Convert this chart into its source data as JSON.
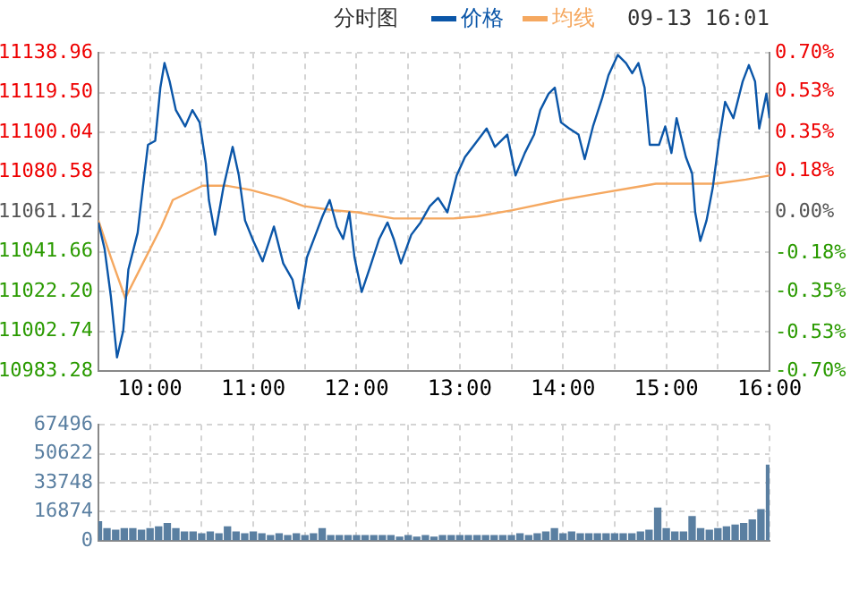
{
  "chart_data": [
    {
      "type": "line",
      "title": "分时图",
      "annotations": [
        "09-13 16:01"
      ],
      "legend": "top",
      "grid": true,
      "marker": "none",
      "xlim": [
        9.5,
        16
      ],
      "xticks": [
        {
          "value": 10,
          "label": "10:00"
        },
        {
          "value": 10.5,
          "label": null
        },
        {
          "value": 11,
          "label": "11:00"
        },
        {
          "value": 11.5,
          "label": null
        },
        {
          "value": 12,
          "label": "12:00"
        },
        {
          "value": 12.5,
          "label": null
        },
        {
          "value": 13,
          "label": "13:00"
        },
        {
          "value": 13.5,
          "label": null
        },
        {
          "value": 14,
          "label": "14:00"
        },
        {
          "value": 14.5,
          "label": null
        },
        {
          "value": 15,
          "label": "15:00"
        },
        {
          "value": 15.5,
          "label": null
        },
        {
          "value": 16,
          "label": "16:00"
        }
      ],
      "ylim": [
        10983.28,
        11138.96
      ],
      "yticks": [
        10983.28,
        11002.74,
        {
          "value": 11022.2,
          "label": "11022.20"
        },
        11041.66,
        11061.12,
        11080.58,
        11100.04,
        {
          "value": 11119.5,
          "label": "11119.50"
        },
        11138.96
      ],
      "y2lim": [
        -0.7,
        0.7
      ],
      "y2ticks": [
        {
          "value": -0.7,
          "label": "-0.70%"
        },
        {
          "value": -0.53,
          "label": "-0.53%"
        },
        {
          "value": -0.35,
          "label": "-0.35%"
        },
        {
          "value": -0.18,
          "label": "-0.18%"
        },
        {
          "value": 0,
          "label": "0.00%"
        },
        {
          "value": 0.18,
          "label": "0.18%"
        },
        {
          "value": 0.35,
          "label": "0.35%"
        },
        {
          "value": 0.53,
          "label": "0.53%"
        },
        {
          "value": 0.7,
          "label": "0.70%"
        }
      ],
      "series": [
        {
          "name": "价格",
          "color": "#0b56a8",
          "x": [
            9.5,
            9.56,
            9.62,
            9.68,
            9.74,
            9.79,
            9.88,
            9.93,
            9.98,
            10.05,
            10.1,
            10.14,
            10.19,
            10.25,
            10.34,
            10.41,
            10.48,
            10.54,
            10.57,
            10.63,
            10.71,
            10.8,
            10.86,
            10.92,
            11,
            11.09,
            11.2,
            11.29,
            11.38,
            11.44,
            11.52,
            11.61,
            11.67,
            11.74,
            11.81,
            11.87,
            11.93,
            11.98,
            12.05,
            12.13,
            12.22,
            12.3,
            12.36,
            12.43,
            12.53,
            12.62,
            12.71,
            12.79,
            12.88,
            12.97,
            13.05,
            13.17,
            13.26,
            13.34,
            13.46,
            13.54,
            13.63,
            13.72,
            13.78,
            13.86,
            13.92,
            13.98,
            14.06,
            14.15,
            14.21,
            14.29,
            14.38,
            14.44,
            14.53,
            14.61,
            14.67,
            14.73,
            14.79,
            14.84,
            14.93,
            14.99,
            15.05,
            15.1,
            15.19,
            15.25,
            15.28,
            15.33,
            15.39,
            15.45,
            15.51,
            15.57,
            15.65,
            15.74,
            15.8,
            15.86,
            15.9,
            15.97,
            16
          ],
          "values": [
            11056,
            11043,
            11020,
            10990,
            11003,
            11033,
            11051,
            11073,
            11094,
            11096,
            11122,
            11134,
            11125,
            11111,
            11103,
            11111,
            11105,
            11085,
            11067,
            11050,
            11073,
            11093,
            11079,
            11057,
            11047,
            11037,
            11054,
            11036,
            11028,
            11014,
            11039,
            11051,
            11059,
            11067,
            11054,
            11048,
            11061,
            11039,
            11022,
            11034,
            11048,
            11056,
            11048,
            11036,
            11050,
            11056,
            11064,
            11068,
            11061,
            11079,
            11088,
            11096,
            11102,
            11093,
            11099,
            11079,
            11090,
            11099,
            11111,
            11119,
            11122,
            11105,
            11102,
            11099,
            11087,
            11103,
            11117,
            11128,
            11138,
            11134,
            11129,
            11134,
            11122,
            11094,
            11094,
            11103,
            11090,
            11107,
            11088,
            11080,
            11061,
            11047,
            11057,
            11073,
            11096,
            11115,
            11107,
            11125,
            11133,
            11125,
            11102,
            11119,
            11107
          ]
        },
        {
          "name": "均线",
          "color": "#f5a860",
          "x": [
            9.5,
            9.62,
            9.76,
            9.93,
            10.11,
            10.22,
            10.51,
            10.74,
            10.97,
            11.26,
            11.49,
            11.78,
            12.01,
            12.36,
            12.59,
            12.94,
            13.17,
            13.51,
            13.98,
            14.32,
            14.67,
            14.9,
            15.25,
            15.48,
            15.77,
            16
          ],
          "values": [
            11057,
            11039,
            11019,
            11036,
            11054,
            11067,
            11074,
            11074,
            11072,
            11068,
            11064,
            11062,
            11061,
            11058,
            11058,
            11058,
            11059,
            11062,
            11067,
            11070,
            11073,
            11075,
            11075,
            11075,
            11077,
            11079
          ]
        }
      ]
    },
    {
      "type": "bar",
      "grid": true,
      "tick_labels": "y",
      "xlim": [
        9.5,
        16
      ],
      "xticks": [
        10,
        10.5,
        11,
        11.5,
        12,
        12.5,
        13,
        13.5,
        14,
        14.5,
        15,
        15.5,
        16
      ],
      "ylim": [
        0,
        67496
      ],
      "yticks": [
        0,
        16874,
        33748,
        50622,
        67496
      ],
      "x": [
        9.5,
        9.583,
        9.667,
        9.75,
        9.833,
        9.917,
        10,
        10.083,
        10.167,
        10.25,
        10.333,
        10.417,
        10.5,
        10.583,
        10.667,
        10.75,
        10.833,
        10.917,
        11,
        11.083,
        11.167,
        11.25,
        11.333,
        11.417,
        11.5,
        11.583,
        11.667,
        11.75,
        11.833,
        11.917,
        12,
        12.083,
        12.167,
        12.25,
        12.333,
        12.417,
        12.5,
        12.583,
        12.667,
        12.75,
        12.833,
        12.917,
        13,
        13.083,
        13.167,
        13.25,
        13.333,
        13.417,
        13.5,
        13.583,
        13.667,
        13.75,
        13.833,
        13.917,
        14,
        14.083,
        14.167,
        14.25,
        14.333,
        14.417,
        14.5,
        14.583,
        14.667,
        14.75,
        14.833,
        14.917,
        15,
        15.083,
        15.167,
        15.25,
        15.333,
        15.417,
        15.5,
        15.583,
        15.667,
        15.75,
        15.833,
        15.917,
        16
      ],
      "series": [
        {
          "color": "#5a7fa1",
          "values": [
            11000,
            7000,
            6000,
            7000,
            7000,
            6000,
            7000,
            8000,
            10000,
            7000,
            5000,
            5000,
            4000,
            5000,
            4000,
            8000,
            5000,
            4000,
            5000,
            4000,
            3000,
            4000,
            3000,
            4000,
            3000,
            4000,
            7000,
            3000,
            3000,
            3000,
            3000,
            3000,
            3000,
            3000,
            3000,
            2000,
            3000,
            2000,
            3000,
            2000,
            3000,
            3000,
            3000,
            3000,
            3000,
            3000,
            3000,
            3000,
            3000,
            4000,
            3000,
            4000,
            5000,
            7000,
            4000,
            5000,
            4000,
            4000,
            4000,
            4000,
            4000,
            4000,
            4000,
            5000,
            6000,
            19000,
            7000,
            5000,
            5000,
            14000,
            7000,
            6000,
            7000,
            8000,
            9000,
            10000,
            12000,
            18000,
            44000
          ]
        }
      ]
    }
  ]
}
